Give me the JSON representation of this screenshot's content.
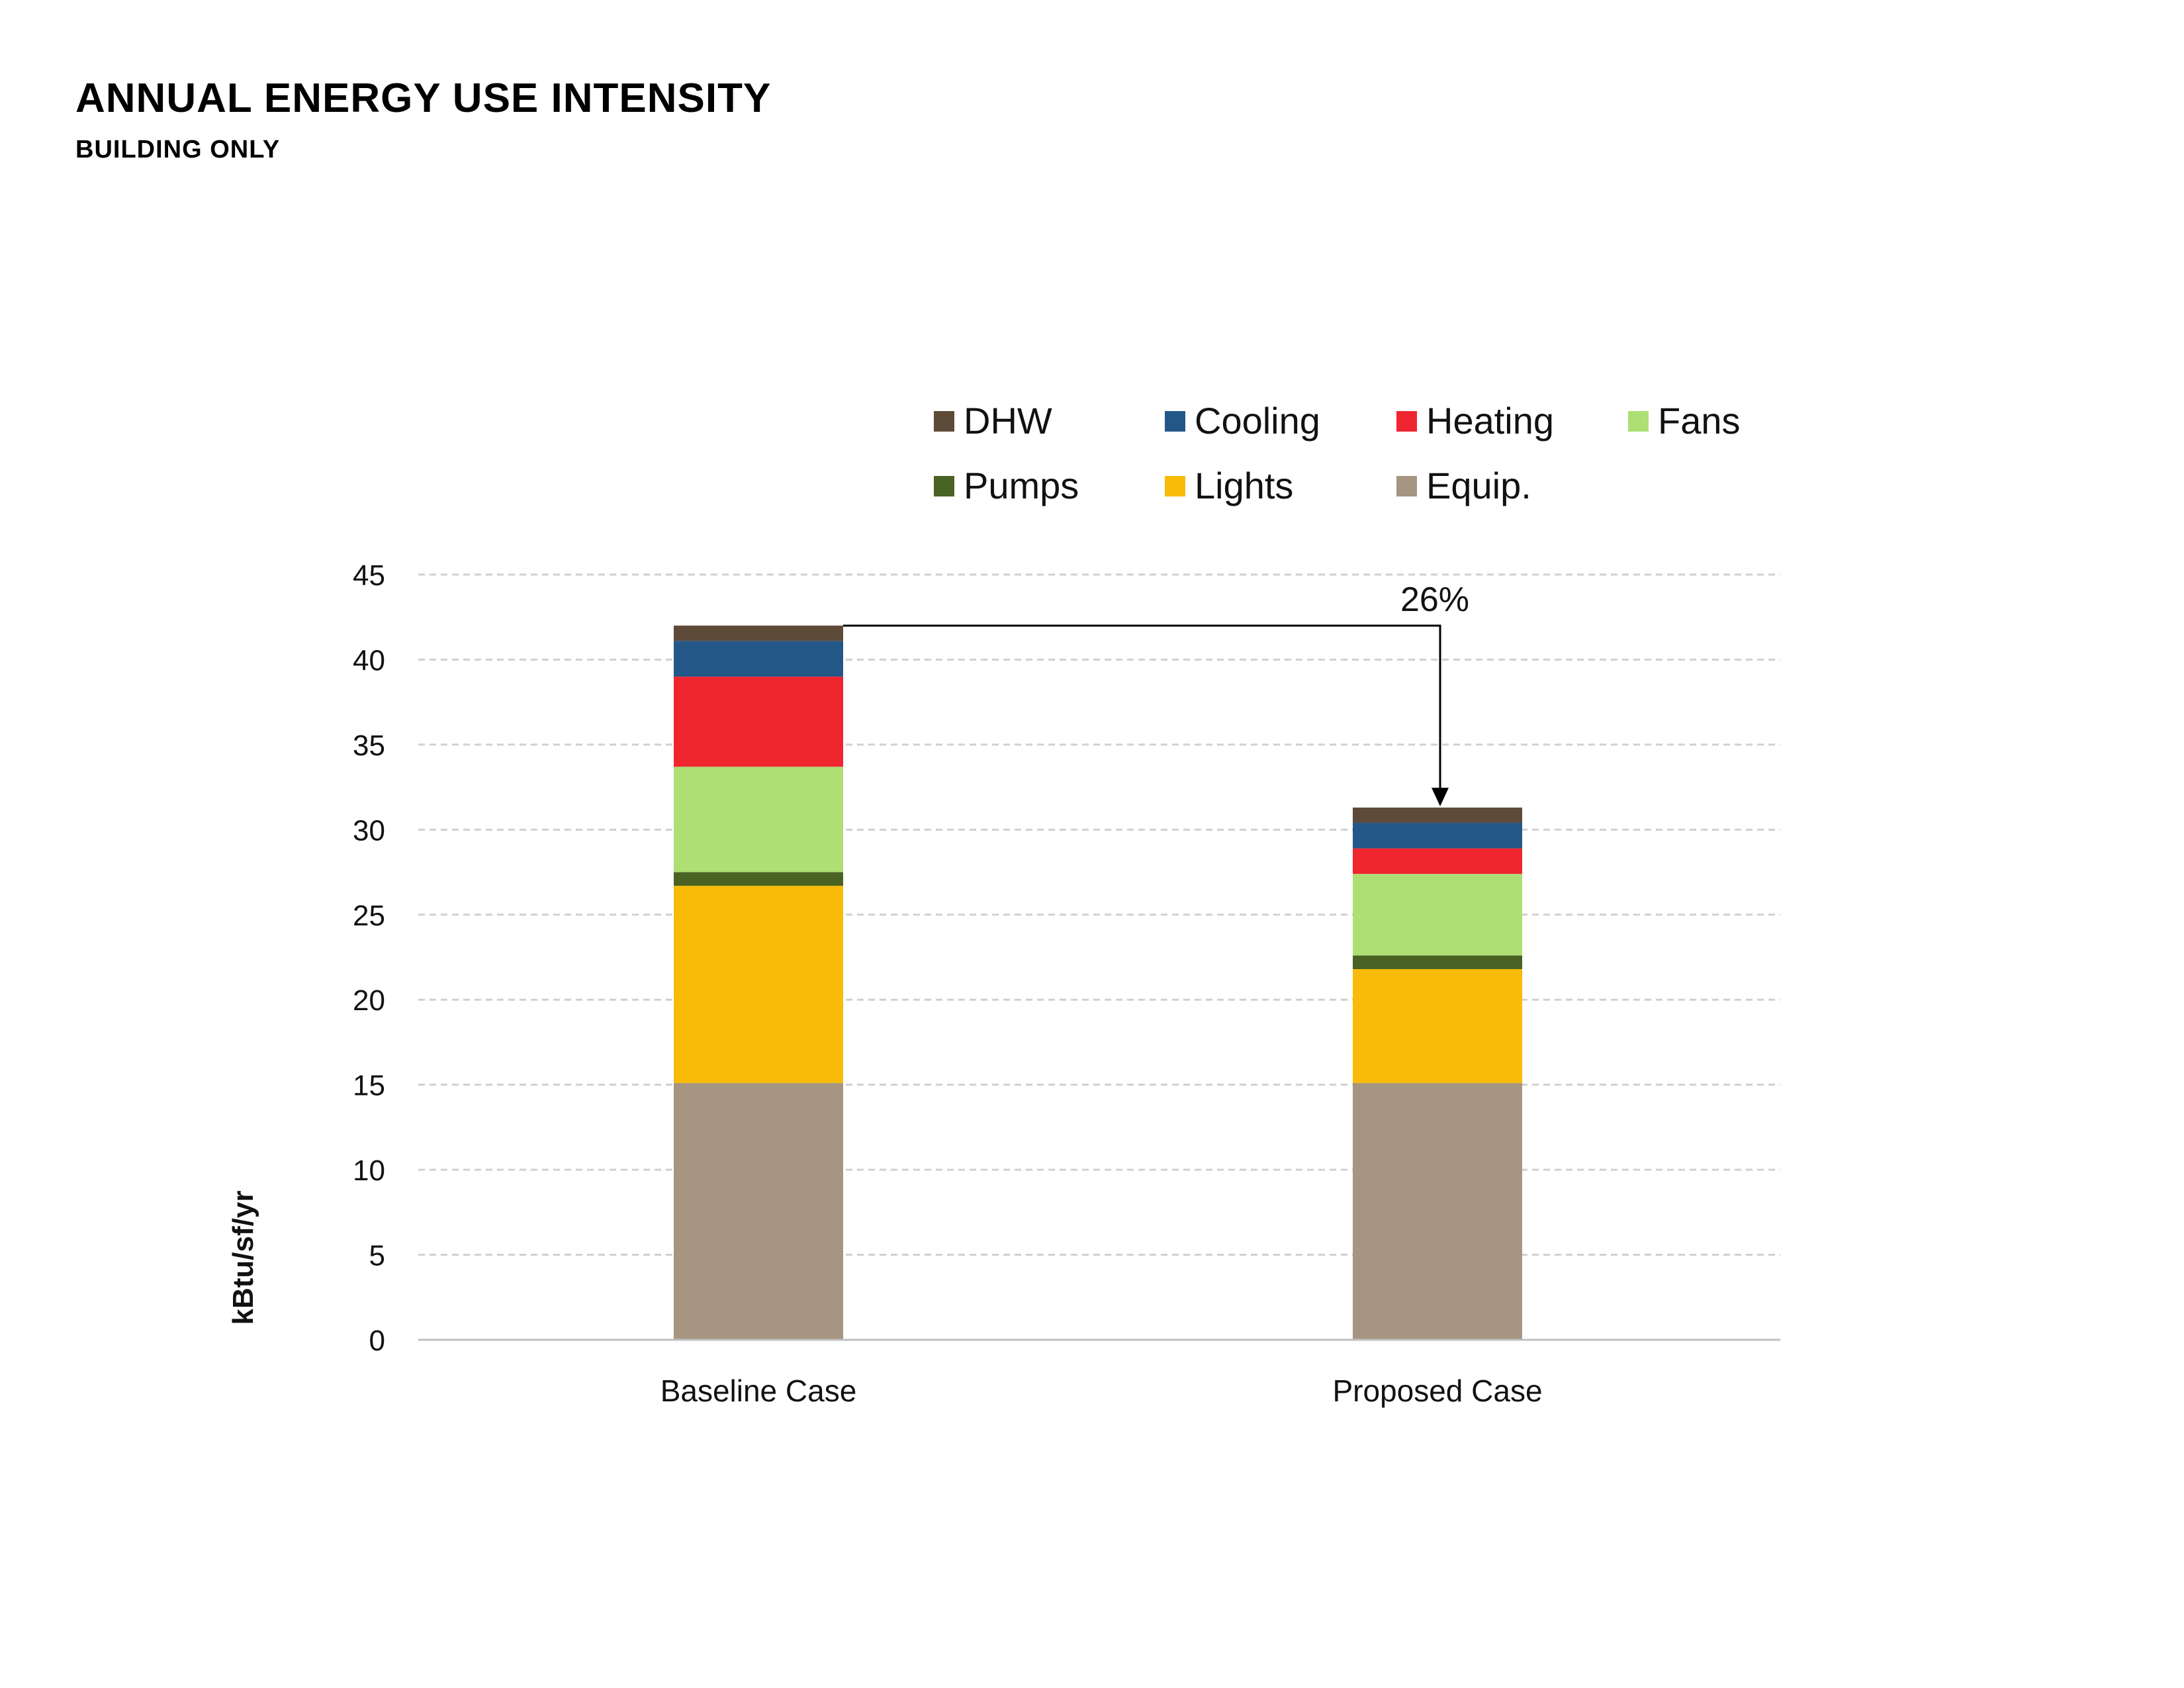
{
  "header": {
    "title": "ANNUAL ENERGY USE INTENSITY",
    "subtitle": "BUILDING ONLY"
  },
  "chart_data": {
    "type": "bar",
    "stacked": true,
    "categories": [
      "Baseline Case",
      "Proposed Case"
    ],
    "series": [
      {
        "name": "Equip.",
        "color": "#a69580",
        "values": [
          15.1,
          15.1
        ]
      },
      {
        "name": "Lights",
        "color": "#f9bb0a",
        "values": [
          11.6,
          6.7
        ]
      },
      {
        "name": "Pumps",
        "color": "#4a6224",
        "values": [
          0.8,
          0.8
        ]
      },
      {
        "name": "Fans",
        "color": "#addf75",
        "values": [
          6.2,
          4.8
        ]
      },
      {
        "name": "Heating",
        "color": "#ef2530",
        "values": [
          5.3,
          1.5
        ]
      },
      {
        "name": "Cooling",
        "color": "#235788",
        "values": [
          2.1,
          1.5
        ]
      },
      {
        "name": "DHW",
        "color": "#5e4a39",
        "values": [
          0.9,
          0.9
        ]
      }
    ],
    "legend_order": [
      "DHW",
      "Cooling",
      "Heating",
      "Fans",
      "Pumps",
      "Lights",
      "Equip."
    ],
    "legend_position": "top",
    "ylabel": "kBtu/sf/yr",
    "xlabel": "",
    "ylim": [
      0,
      45
    ],
    "yticks": [
      0,
      5,
      10,
      15,
      20,
      25,
      30,
      35,
      40,
      45
    ],
    "grid": true,
    "annotation": {
      "text": "26%",
      "from": "Baseline Case",
      "to": "Proposed Case"
    }
  }
}
